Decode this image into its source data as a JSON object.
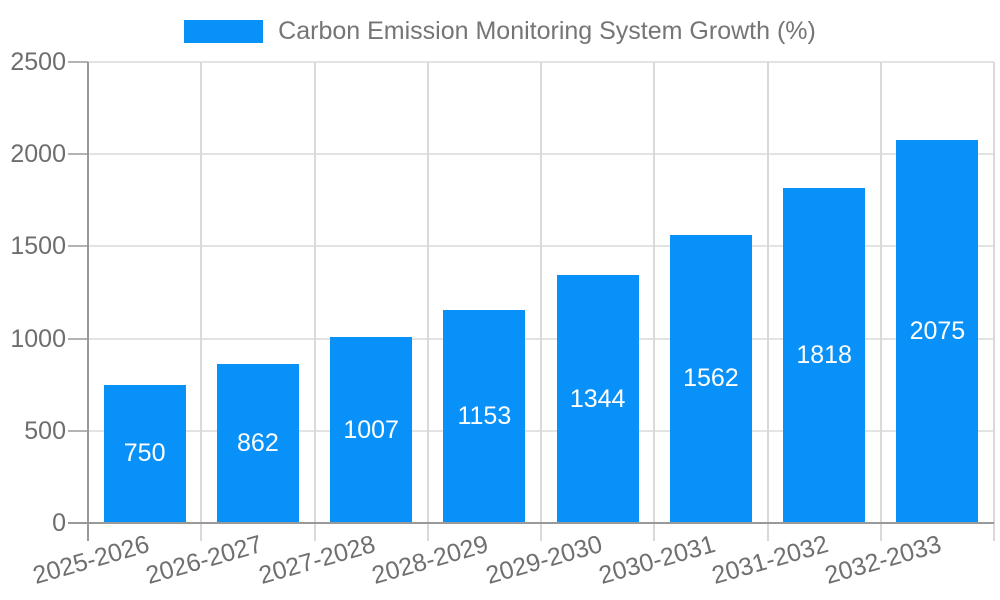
{
  "legend": {
    "label": "Carbon Emission Monitoring System Growth (%)"
  },
  "colors": {
    "bar": "#0991fa",
    "axis": "#999999",
    "grid_horizontal": "#e3e3e3",
    "grid_vertical": "#d9d9d9",
    "tick_mark": "#b3b3b3",
    "y_tick_label": "#6e6e6e",
    "x_tick_label": "#6f6f6f",
    "legend_label": "#757575",
    "value_label": "#ffffff",
    "background": "#ffffff"
  },
  "chart_data": {
    "type": "bar",
    "title": "Carbon Emission Monitoring System Growth (%)",
    "categories": [
      "2025-2026",
      "2026-2027",
      "2027-2028",
      "2028-2029",
      "2029-2030",
      "2030-2031",
      "2031-2032",
      "2032-2033"
    ],
    "values": [
      750,
      862,
      1007,
      1153,
      1344,
      1562,
      1818,
      2075
    ],
    "series": [
      {
        "name": "Carbon Emission Monitoring System Growth (%)",
        "values": [
          750,
          862,
          1007,
          1153,
          1344,
          1562,
          1818,
          2075
        ]
      }
    ],
    "xlabel": "",
    "ylabel": "",
    "ylim": [
      0,
      2500
    ],
    "yticks": [
      0,
      500,
      1000,
      1500,
      2000,
      2500
    ],
    "grid": true,
    "legend_position": "top-center",
    "value_labels_position": "inside-center",
    "x_tick_rotation_deg": -16
  }
}
